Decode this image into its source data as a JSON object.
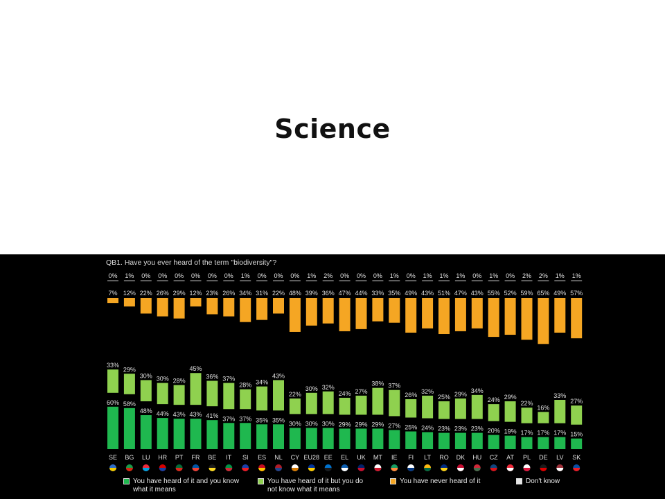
{
  "slide": {
    "title": "Science"
  },
  "chart_data": {
    "type": "bar",
    "stacked": true,
    "question": "QB1. Have you ever heard of the term \"biodiversity\"?",
    "categories": [
      "SE",
      "BG",
      "LU",
      "HR",
      "PT",
      "FR",
      "BE",
      "IT",
      "SI",
      "ES",
      "NL",
      "CY",
      "EU28",
      "EE",
      "EL",
      "UK",
      "MT",
      "IE",
      "FI",
      "LT",
      "RO",
      "DK",
      "HU",
      "CZ",
      "AT",
      "PL",
      "DE",
      "LV",
      "SK"
    ],
    "series": [
      {
        "name": "You have heard of it and you know what it means",
        "color": "#1fb84f",
        "values": [
          60,
          58,
          48,
          44,
          43,
          43,
          41,
          37,
          37,
          35,
          35,
          30,
          30,
          30,
          29,
          29,
          29,
          27,
          25,
          24,
          23,
          23,
          23,
          20,
          19,
          17,
          17,
          17,
          15
        ]
      },
      {
        "name": "You have heard of it but you do not know what it means",
        "color": "#8fd14f",
        "values": [
          33,
          29,
          30,
          30,
          28,
          45,
          36,
          37,
          28,
          34,
          43,
          22,
          30,
          32,
          24,
          27,
          38,
          37,
          26,
          32,
          25,
          29,
          34,
          24,
          29,
          22,
          16,
          33,
          27
        ]
      },
      {
        "name": "You have never heard of it",
        "color": "#f5a623",
        "values": [
          7,
          12,
          22,
          26,
          29,
          12,
          23,
          26,
          34,
          31,
          22,
          48,
          39,
          36,
          47,
          44,
          33,
          35,
          49,
          43,
          51,
          47,
          43,
          55,
          52,
          59,
          65,
          49,
          57
        ]
      },
      {
        "name": "Don't know",
        "color": "#e6e6e6",
        "values": [
          0,
          1,
          0,
          0,
          0,
          0,
          0,
          0,
          1,
          0,
          0,
          0,
          1,
          2,
          0,
          0,
          0,
          1,
          0,
          1,
          1,
          1,
          0,
          1,
          0,
          2,
          2,
          1,
          1
        ]
      }
    ],
    "ylim": [
      0,
      100
    ],
    "legend_position": "bottom",
    "flag_colors": {
      "SE": [
        "#2d6bc6",
        "#f2c800"
      ],
      "BG": [
        "#1a9a4a",
        "#d62612"
      ],
      "LU": [
        "#ed2939",
        "#00a1de"
      ],
      "HR": [
        "#d60000",
        "#1740a0"
      ],
      "PT": [
        "#046a38",
        "#da291c"
      ],
      "FR": [
        "#0055a4",
        "#ef4135"
      ],
      "BE": [
        "#1a1a1a",
        "#fdda24"
      ],
      "IT": [
        "#009246",
        "#ce2b37"
      ],
      "SI": [
        "#1a3fa8",
        "#ed1c24"
      ],
      "ES": [
        "#c60b1e",
        "#ffc400"
      ],
      "NL": [
        "#ae1c28",
        "#21468b"
      ],
      "CY": [
        "#ffffff",
        "#d57800"
      ],
      "EU28": [
        "#003399",
        "#ffcc00"
      ],
      "EE": [
        "#0072ce",
        "#1a1a1a"
      ],
      "EL": [
        "#0d5eaf",
        "#ffffff"
      ],
      "UK": [
        "#012169",
        "#c8102e"
      ],
      "MT": [
        "#ffffff",
        "#cf142b"
      ],
      "IE": [
        "#169b62",
        "#ff883e"
      ],
      "FI": [
        "#ffffff",
        "#003580"
      ],
      "LT": [
        "#fdb913",
        "#006a44"
      ],
      "RO": [
        "#002b7f",
        "#fcd116"
      ],
      "DK": [
        "#c60c30",
        "#ffffff"
      ],
      "HU": [
        "#ce2939",
        "#477050"
      ],
      "CZ": [
        "#11457e",
        "#d7141a"
      ],
      "AT": [
        "#ed2939",
        "#ffffff"
      ],
      "PL": [
        "#ffffff",
        "#dc143c"
      ],
      "DE": [
        "#1a1a1a",
        "#dd0000"
      ],
      "LV": [
        "#9e3039",
        "#ffffff"
      ],
      "SK": [
        "#0b4ea2",
        "#ee1c25"
      ]
    }
  }
}
